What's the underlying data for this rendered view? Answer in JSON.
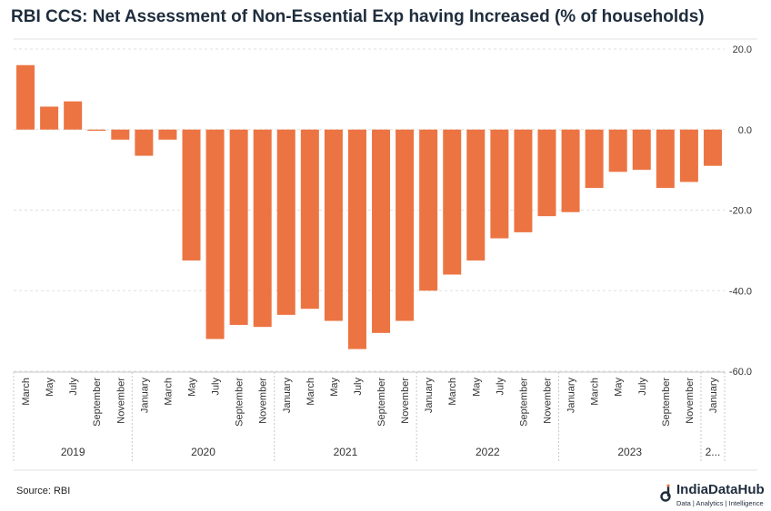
{
  "title": "RBI CCS: Net Assessment of Non-Essential Exp having Increased (% of households)",
  "source": "Source: RBI",
  "logo": {
    "name": "IndiaDataHub",
    "tagline": "Data | Analytics | Intelligence"
  },
  "colors": {
    "bar": "#ec7442",
    "grid": "#e0e0e0",
    "axis": "#c8c8c8"
  },
  "chart_data": {
    "type": "bar",
    "categories": [
      "March",
      "May",
      "July",
      "September",
      "November",
      "January",
      "March",
      "May",
      "July",
      "September",
      "November",
      "January",
      "March",
      "May",
      "July",
      "September",
      "November",
      "January",
      "March",
      "May",
      "July",
      "September",
      "November",
      "January",
      "March",
      "May",
      "July",
      "September",
      "November",
      "January"
    ],
    "year_groups": [
      {
        "label": "2019",
        "count": 5
      },
      {
        "label": "2020",
        "count": 6
      },
      {
        "label": "2021",
        "count": 6
      },
      {
        "label": "2022",
        "count": 6
      },
      {
        "label": "2023",
        "count": 6
      },
      {
        "label": "2...",
        "count": 1
      }
    ],
    "values": [
      16.0,
      5.7,
      7.0,
      -0.3,
      -2.5,
      -6.5,
      -2.5,
      -32.5,
      -52.0,
      -48.5,
      -49.0,
      -46.0,
      -44.5,
      -47.5,
      -54.5,
      -50.5,
      -47.5,
      -40.0,
      -36.0,
      -32.5,
      -27.0,
      -25.5,
      -21.5,
      -20.5,
      -14.5,
      -10.5,
      -10.0,
      -14.5,
      -13.0,
      -9.0
    ],
    "yticks": [
      "20.0",
      "0.0",
      "-20.0",
      "-40.0",
      "-60.0"
    ],
    "ytick_values": [
      20,
      0,
      -20,
      -40,
      -60
    ],
    "ylim": [
      -60,
      20
    ],
    "y_axis_position": "right",
    "grid": "horizontal"
  }
}
